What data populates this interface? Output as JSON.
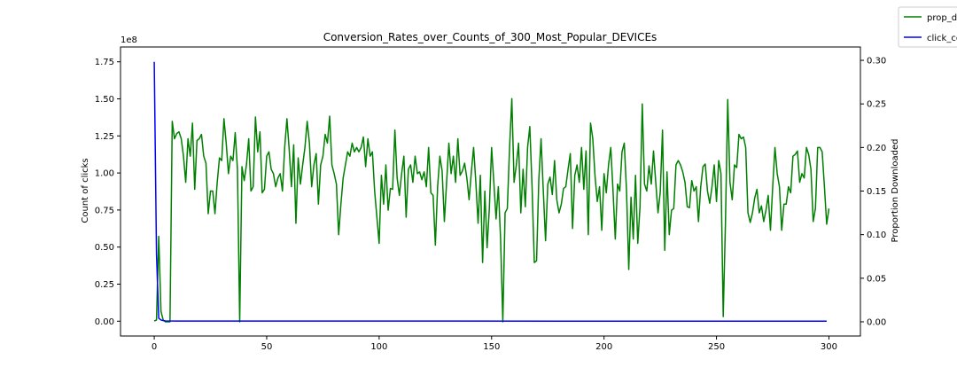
{
  "chart_data": {
    "type": "line",
    "title": "Conversion_Rates_over_Counts_of_300_Most_Popular_DEVICEs",
    "xlabel": "",
    "ylabel_left": "Count of clicks",
    "ylabel_right": "Proportion Downloaded",
    "left_offset_text": "1e8",
    "xlim": [
      -15,
      314
    ],
    "ylim_left": [
      -0.1,
      1.85
    ],
    "ylim_right": [
      -0.0163,
      0.3153
    ],
    "x_ticks": [
      0,
      50,
      100,
      150,
      200,
      250,
      300
    ],
    "x_tick_labels": [
      "0",
      "50",
      "100",
      "150",
      "200",
      "250",
      "300"
    ],
    "y_left_ticks": [
      0,
      0.25,
      0.5,
      0.75,
      1.0,
      1.25,
      1.5,
      1.75
    ],
    "y_left_tick_labels": [
      "0.00",
      "0.25",
      "0.50",
      "0.75",
      "1.00",
      "1.25",
      "1.50",
      "1.75"
    ],
    "y_right_ticks": [
      0,
      0.05,
      0.1,
      0.15,
      0.2,
      0.25,
      0.3
    ],
    "y_right_tick_labels": [
      "0.00",
      "0.05",
      "0.10",
      "0.15",
      "0.20",
      "0.25",
      "0.30"
    ],
    "legend_position": "outside top-right",
    "grid": false,
    "series": [
      {
        "name": "prop_d",
        "axis": "right",
        "color": "#008000",
        "x_start": 0,
        "values": [
          0.001,
          0.002,
          0.098,
          0.012,
          0.002,
          0.0,
          0.0,
          0.0,
          0.23,
          0.21,
          0.216,
          0.218,
          0.21,
          0.19,
          0.16,
          0.21,
          0.19,
          0.228,
          0.152,
          0.208,
          0.21,
          0.215,
          0.19,
          0.182,
          0.124,
          0.15,
          0.15,
          0.124,
          0.16,
          0.188,
          0.185,
          0.233,
          0.205,
          0.17,
          0.19,
          0.185,
          0.217,
          0.175,
          0.0,
          0.178,
          0.162,
          0.18,
          0.21,
          0.15,
          0.155,
          0.235,
          0.195,
          0.218,
          0.148,
          0.152,
          0.19,
          0.195,
          0.175,
          0.17,
          0.155,
          0.165,
          0.17,
          0.15,
          0.2,
          0.233,
          0.198,
          0.155,
          0.203,
          0.113,
          0.188,
          0.158,
          0.18,
          0.2,
          0.23,
          0.205,
          0.155,
          0.18,
          0.193,
          0.135,
          0.18,
          0.19,
          0.215,
          0.205,
          0.236,
          0.18,
          0.17,
          0.158,
          0.1,
          0.135,
          0.165,
          0.18,
          0.195,
          0.19,
          0.205,
          0.195,
          0.2,
          0.195,
          0.2,
          0.212,
          0.178,
          0.21,
          0.19,
          0.195,
          0.15,
          0.12,
          0.09,
          0.168,
          0.135,
          0.18,
          0.128,
          0.153,
          0.152,
          0.22,
          0.165,
          0.145,
          0.17,
          0.19,
          0.12,
          0.175,
          0.18,
          0.16,
          0.19,
          0.17,
          0.172,
          0.163,
          0.172,
          0.155,
          0.2,
          0.148,
          0.145,
          0.088,
          0.155,
          0.19,
          0.173,
          0.115,
          0.16,
          0.205,
          0.17,
          0.19,
          0.16,
          0.21,
          0.168,
          0.173,
          0.182,
          0.165,
          0.14,
          0.172,
          0.2,
          0.16,
          0.113,
          0.168,
          0.068,
          0.15,
          0.085,
          0.13,
          0.2,
          0.16,
          0.118,
          0.155,
          0.095,
          0.0,
          0.125,
          0.13,
          0.2,
          0.256,
          0.16,
          0.18,
          0.205,
          0.125,
          0.175,
          0.132,
          0.2,
          0.224,
          0.155,
          0.068,
          0.07,
          0.163,
          0.21,
          0.15,
          0.093,
          0.158,
          0.166,
          0.146,
          0.185,
          0.14,
          0.125,
          0.135,
          0.153,
          0.155,
          0.175,
          0.193,
          0.107,
          0.168,
          0.18,
          0.16,
          0.2,
          0.152,
          0.196,
          0.1,
          0.228,
          0.21,
          0.167,
          0.138,
          0.155,
          0.105,
          0.17,
          0.148,
          0.18,
          0.2,
          0.15,
          0.095,
          0.158,
          0.15,
          0.195,
          0.205,
          0.15,
          0.06,
          0.143,
          0.095,
          0.168,
          0.09,
          0.132,
          0.25,
          0.158,
          0.15,
          0.179,
          0.158,
          0.196,
          0.16,
          0.125,
          0.149,
          0.22,
          0.082,
          0.172,
          0.1,
          0.128,
          0.13,
          0.18,
          0.185,
          0.18,
          0.172,
          0.16,
          0.132,
          0.131,
          0.162,
          0.15,
          0.155,
          0.115,
          0.155,
          0.178,
          0.181,
          0.15,
          0.136,
          0.155,
          0.18,
          0.138,
          0.185,
          0.17,
          0.006,
          0.115,
          0.255,
          0.16,
          0.14,
          0.18,
          0.177,
          0.215,
          0.21,
          0.212,
          0.2,
          0.125,
          0.114,
          0.125,
          0.142,
          0.152,
          0.125,
          0.133,
          0.115,
          0.128,
          0.145,
          0.105,
          0.155,
          0.2,
          0.17,
          0.155,
          0.105,
          0.135,
          0.135,
          0.155,
          0.148,
          0.19,
          0.192,
          0.196,
          0.16,
          0.17,
          0.165,
          0.2,
          0.192,
          0.175,
          0.115,
          0.13,
          0.2,
          0.2,
          0.195,
          0.155,
          0.112,
          0.13
        ]
      },
      {
        "name": "click_co",
        "axis": "left",
        "color": "#0000ff",
        "x_start": 0,
        "points": [
          [
            0,
            1.75
          ],
          [
            1,
            0.45
          ],
          [
            2,
            0.02
          ],
          [
            3,
            0.008
          ],
          [
            4,
            0.004
          ],
          [
            5,
            0.002
          ],
          [
            10,
            0.001
          ],
          [
            299,
            0.0
          ]
        ]
      }
    ]
  }
}
